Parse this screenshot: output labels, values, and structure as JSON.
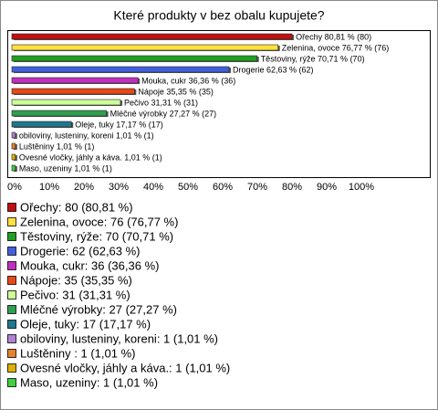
{
  "chart_data": {
    "type": "bar",
    "orientation": "horizontal",
    "title": "Které produkty v bez obalu kupujete?",
    "categories": [
      "Ořechy",
      "Zelenina, ovoce",
      "Těstoviny, rýže",
      "Drogerie",
      "Mouka, cukr",
      "Nápoje",
      "Pečivo",
      "Mléčné výrobky",
      "Oleje, tuky",
      "obiloviny, lusteniny, koreni",
      "Luštěniny ",
      "Ovesné vločky, jáhly a káva.",
      "Maso, uzeniny"
    ],
    "values": [
      80.81,
      76.77,
      70.71,
      62.63,
      36.36,
      35.35,
      31.31,
      27.27,
      17.17,
      1.01,
      1.01,
      1.01,
      1.01
    ],
    "value_labels": [
      "Ořechy 80,81 % (80)",
      "Zelenina, ovoce 76,77 % (76)",
      "Těstoviny, rýže 70,71 % (70)",
      "Drogerie 62,63 % (62)",
      "Mouka, cukr 36,36 % (36)",
      "Nápoje 35,35 % (35)",
      "Pečivo 31,31 % (31)",
      "Mléčné výrobky 27,27 % (27)",
      "Oleje, tuky 17,17 % (17)",
      "obiloviny, lusteniny, koreni 1,01 % (1)",
      "Luštěniny  1,01 % (1)",
      "Ovesné vločky, jáhly a káva. 1,01 % (1)",
      "Maso, uzeniny 1,01 % (1)"
    ],
    "legend_labels": [
      "Ořechy: 80 (80,81 %)",
      "Zelenina, ovoce: 76 (76,77 %)",
      "Těstoviny, rýže: 70 (70,71 %)",
      "Drogerie: 62 (62,63 %)",
      "Mouka, cukr: 36 (36,36 %)",
      "Nápoje: 35 (35,35 %)",
      "Pečivo: 31 (31,31 %)",
      "Mléčné výrobky: 27 (27,27 %)",
      "Oleje, tuky: 17 (17,17 %)",
      "obiloviny, lusteniny, koreni: 1 (1,01 %)",
      "Luštěniny : 1 (1,01 %)",
      "Ovesné vločky, jáhly a káva.: 1 (1,01 %)",
      "Maso, uzeniny: 1 (1,01 %)"
    ],
    "colors": [
      "#c01010",
      "#ffe040",
      "#20a020",
      "#4060e0",
      "#c030c0",
      "#e84818",
      "#ccff99",
      "#30a050",
      "#207890",
      "#b080d0",
      "#e88030",
      "#e0b000",
      "#40d040"
    ],
    "xlim": [
      0,
      100
    ],
    "xticks": [
      {
        "value": 0,
        "label": "0%"
      },
      {
        "value": 10,
        "label": "10%"
      },
      {
        "value": 20,
        "label": "20%"
      },
      {
        "value": 30,
        "label": "30%"
      },
      {
        "value": 40,
        "label": "40%"
      },
      {
        "value": 50,
        "label": "50%"
      },
      {
        "value": 60,
        "label": "60%"
      },
      {
        "value": 70,
        "label": "70%"
      },
      {
        "value": 80,
        "label": "80%"
      },
      {
        "value": 90,
        "label": "90%"
      },
      {
        "value": 100,
        "label": "100%"
      }
    ],
    "grid": false
  }
}
